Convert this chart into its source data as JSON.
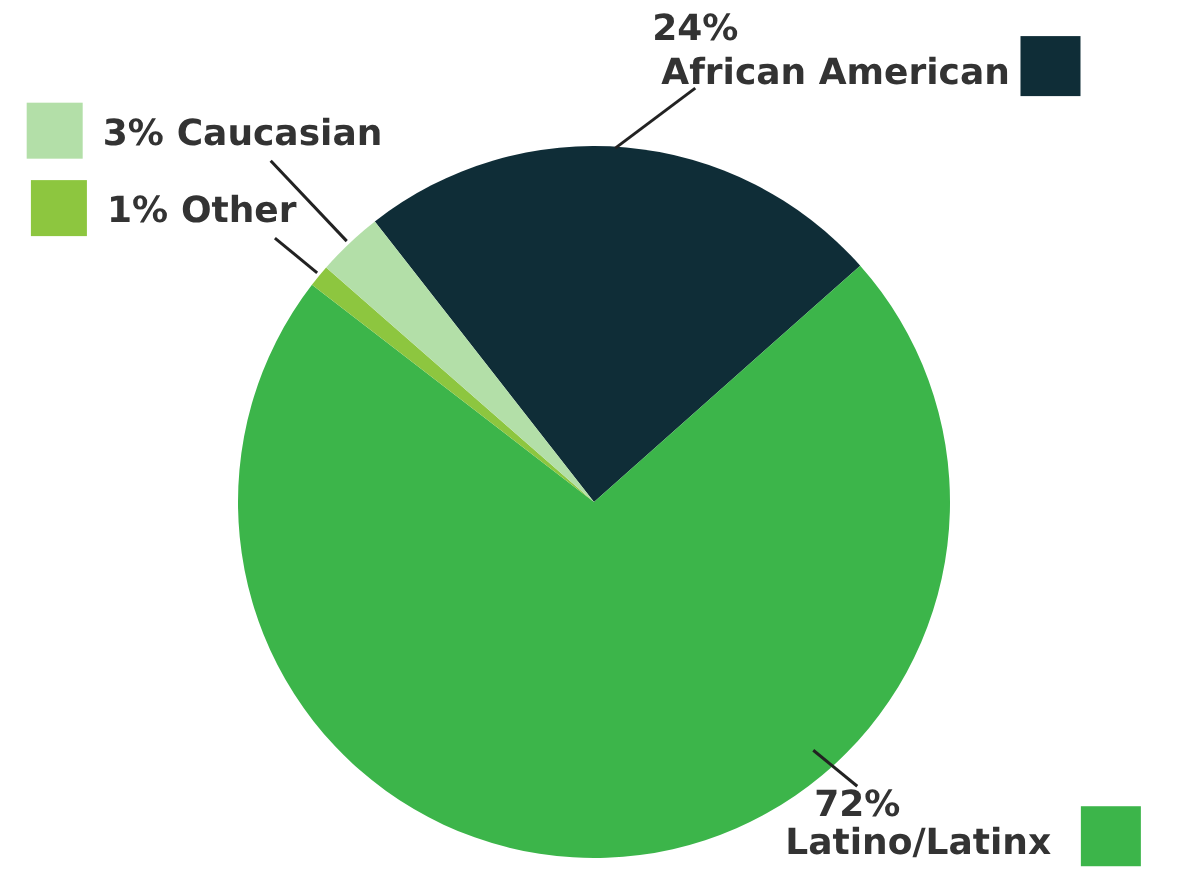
{
  "chart_data": {
    "type": "pie",
    "categories": [
      "African American",
      "Latino/Latinx",
      "Other",
      "Caucasian"
    ],
    "values": [
      24,
      72,
      1,
      3
    ],
    "colors": [
      "#0f2d37",
      "#3cb54a",
      "#8dc63f",
      "#b3dfa8"
    ],
    "value_labels": [
      "24%",
      "72%",
      "1%",
      "3%"
    ],
    "legend": "right"
  }
}
